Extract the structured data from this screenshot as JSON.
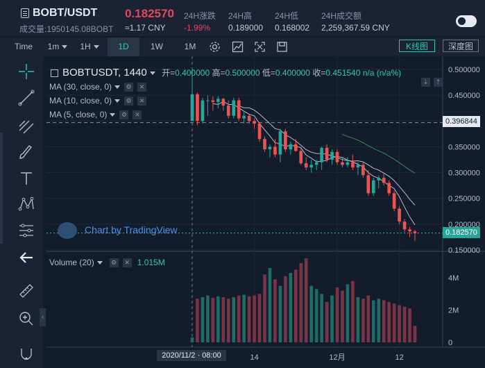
{
  "header": {
    "pair": "BOBT/USDT",
    "volume_text": "成交量:1950145.08BOBT",
    "last_price": "0.182570",
    "cny_price": "≈1.17 CNY",
    "stats": [
      {
        "label": "24H涨跌",
        "value": "-1.99%",
        "color": "#e04a5c"
      },
      {
        "label": "24H高",
        "value": "0.189000",
        "color": "#c5cbd8"
      },
      {
        "label": "24H低",
        "value": "0.168002",
        "color": "#c5cbd8"
      },
      {
        "label": "24H成交额",
        "value": "2,259,367.59 CNY",
        "color": "#c5cbd8"
      }
    ]
  },
  "toolbar": {
    "time_label": "Time",
    "intervals": [
      {
        "label": "1m",
        "dropdown": true,
        "active": false
      },
      {
        "label": "1H",
        "dropdown": true,
        "active": false
      },
      {
        "label": "1D",
        "dropdown": false,
        "active": true
      },
      {
        "label": "1W",
        "dropdown": false,
        "active": false
      },
      {
        "label": "1M",
        "dropdown": false,
        "active": false
      }
    ],
    "kline_label": "K线图",
    "depth_label": "深度图"
  },
  "legend": {
    "symbol": "BOBTUSDT, 1440",
    "open_label": "开=",
    "open": "0.400000",
    "high_label": "高=",
    "high": "0.500000",
    "low_label": "低=",
    "low": "0.400000",
    "close_label": "收=",
    "close": "0.451540",
    "change": "n/a (n/a%)"
  },
  "indicators": [
    {
      "label": "MA (30, close, 0)"
    },
    {
      "label": "MA (10, close, 0)"
    },
    {
      "label": "MA (5, close, 0)"
    }
  ],
  "watermark": "Chart by TradingView",
  "volume_legend": {
    "label": "Volume (20)",
    "value": "1.015M"
  },
  "colors": {
    "up": "#26a69a",
    "down": "#ef5350",
    "ma": "#b5bccb",
    "ma30": "#3c8a5a",
    "accent": "#2ec7b4"
  },
  "chart_data": {
    "type": "candlestick",
    "price_axis": {
      "ticks": [
        "0.500000",
        "0.450000",
        "0.400000",
        "0.350000",
        "0.300000",
        "0.250000",
        "0.200000",
        "0.150000"
      ],
      "ylim": [
        0.15,
        0.5
      ]
    },
    "marked_prices": [
      {
        "value": "0.396844",
        "style": "dashed"
      },
      {
        "value": "0.182570",
        "style": "dotted",
        "color": "#2ec7b4"
      }
    ],
    "volume_axis": {
      "ticks": [
        "4M",
        "2M",
        "0"
      ],
      "ylim": [
        0,
        4000000
      ]
    },
    "x_labels": [
      "14",
      "12月",
      "12"
    ],
    "crosshair_date": "2020/11/2 · 08:00",
    "candles": [
      {
        "o": 0.4,
        "h": 0.5,
        "l": 0.4,
        "c": 0.452,
        "v": 300000
      },
      {
        "o": 0.452,
        "h": 0.455,
        "l": 0.392,
        "c": 0.4,
        "v": 2700000
      },
      {
        "o": 0.4,
        "h": 0.445,
        "l": 0.395,
        "c": 0.44,
        "v": 2800000
      },
      {
        "o": 0.44,
        "h": 0.45,
        "l": 0.41,
        "c": 0.44,
        "v": 2900000
      },
      {
        "o": 0.44,
        "h": 0.448,
        "l": 0.42,
        "c": 0.437,
        "v": 2750000
      },
      {
        "o": 0.437,
        "h": 0.448,
        "l": 0.425,
        "c": 0.443,
        "v": 2850000
      },
      {
        "o": 0.443,
        "h": 0.445,
        "l": 0.42,
        "c": 0.43,
        "v": 2800000
      },
      {
        "o": 0.43,
        "h": 0.44,
        "l": 0.405,
        "c": 0.41,
        "v": 2700000
      },
      {
        "o": 0.41,
        "h": 0.445,
        "l": 0.405,
        "c": 0.44,
        "v": 2800000
      },
      {
        "o": 0.44,
        "h": 0.445,
        "l": 0.4,
        "c": 0.405,
        "v": 2900000
      },
      {
        "o": 0.405,
        "h": 0.42,
        "l": 0.395,
        "c": 0.41,
        "v": 2950000
      },
      {
        "o": 0.41,
        "h": 0.412,
        "l": 0.395,
        "c": 0.4,
        "v": 2850000
      },
      {
        "o": 0.4,
        "h": 0.405,
        "l": 0.385,
        "c": 0.395,
        "v": 2900000
      },
      {
        "o": 0.395,
        "h": 0.398,
        "l": 0.36,
        "c": 0.365,
        "v": 3000000
      },
      {
        "o": 0.365,
        "h": 0.37,
        "l": 0.34,
        "c": 0.345,
        "v": 4200000
      },
      {
        "o": 0.345,
        "h": 0.355,
        "l": 0.33,
        "c": 0.35,
        "v": 4600000
      },
      {
        "o": 0.35,
        "h": 0.365,
        "l": 0.33,
        "c": 0.335,
        "v": 3900000
      },
      {
        "o": 0.335,
        "h": 0.385,
        "l": 0.32,
        "c": 0.38,
        "v": 3500000
      },
      {
        "o": 0.38,
        "h": 0.385,
        "l": 0.34,
        "c": 0.345,
        "v": 4100000
      },
      {
        "o": 0.345,
        "h": 0.36,
        "l": 0.335,
        "c": 0.355,
        "v": 4300000
      },
      {
        "o": 0.355,
        "h": 0.365,
        "l": 0.34,
        "c": 0.342,
        "v": 4500000
      },
      {
        "o": 0.342,
        "h": 0.35,
        "l": 0.315,
        "c": 0.318,
        "v": 4900000
      },
      {
        "o": 0.318,
        "h": 0.33,
        "l": 0.305,
        "c": 0.31,
        "v": 5200000
      },
      {
        "o": 0.31,
        "h": 0.325,
        "l": 0.3,
        "c": 0.315,
        "v": 3500000
      },
      {
        "o": 0.315,
        "h": 0.325,
        "l": 0.305,
        "c": 0.32,
        "v": 3300000
      },
      {
        "o": 0.32,
        "h": 0.35,
        "l": 0.305,
        "c": 0.348,
        "v": 3000000
      },
      {
        "o": 0.348,
        "h": 0.355,
        "l": 0.32,
        "c": 0.325,
        "v": 2500000
      },
      {
        "o": 0.325,
        "h": 0.345,
        "l": 0.315,
        "c": 0.34,
        "v": 2900000
      },
      {
        "o": 0.34,
        "h": 0.345,
        "l": 0.315,
        "c": 0.32,
        "v": 3400000
      },
      {
        "o": 0.32,
        "h": 0.33,
        "l": 0.31,
        "c": 0.315,
        "v": 3200000
      },
      {
        "o": 0.315,
        "h": 0.33,
        "l": 0.31,
        "c": 0.32,
        "v": 3600000
      },
      {
        "o": 0.32,
        "h": 0.335,
        "l": 0.305,
        "c": 0.31,
        "v": 3800000
      },
      {
        "o": 0.31,
        "h": 0.32,
        "l": 0.295,
        "c": 0.315,
        "v": 2800000
      },
      {
        "o": 0.315,
        "h": 0.32,
        "l": 0.29,
        "c": 0.295,
        "v": 2700000
      },
      {
        "o": 0.295,
        "h": 0.305,
        "l": 0.255,
        "c": 0.26,
        "v": 2900000
      },
      {
        "o": 0.26,
        "h": 0.29,
        "l": 0.255,
        "c": 0.285,
        "v": 2600000
      },
      {
        "o": 0.285,
        "h": 0.295,
        "l": 0.27,
        "c": 0.29,
        "v": 2700000
      },
      {
        "o": 0.29,
        "h": 0.3,
        "l": 0.275,
        "c": 0.28,
        "v": 2600000
      },
      {
        "o": 0.28,
        "h": 0.285,
        "l": 0.255,
        "c": 0.26,
        "v": 2500000
      },
      {
        "o": 0.26,
        "h": 0.265,
        "l": 0.225,
        "c": 0.23,
        "v": 2400000
      },
      {
        "o": 0.23,
        "h": 0.235,
        "l": 0.2,
        "c": 0.205,
        "v": 2300000
      },
      {
        "o": 0.205,
        "h": 0.21,
        "l": 0.185,
        "c": 0.19,
        "v": 2200000
      },
      {
        "o": 0.19,
        "h": 0.195,
        "l": 0.175,
        "c": 0.186,
        "v": 2100000
      },
      {
        "o": 0.186,
        "h": 0.189,
        "l": 0.168,
        "c": 0.18257,
        "v": 1015000
      }
    ]
  }
}
